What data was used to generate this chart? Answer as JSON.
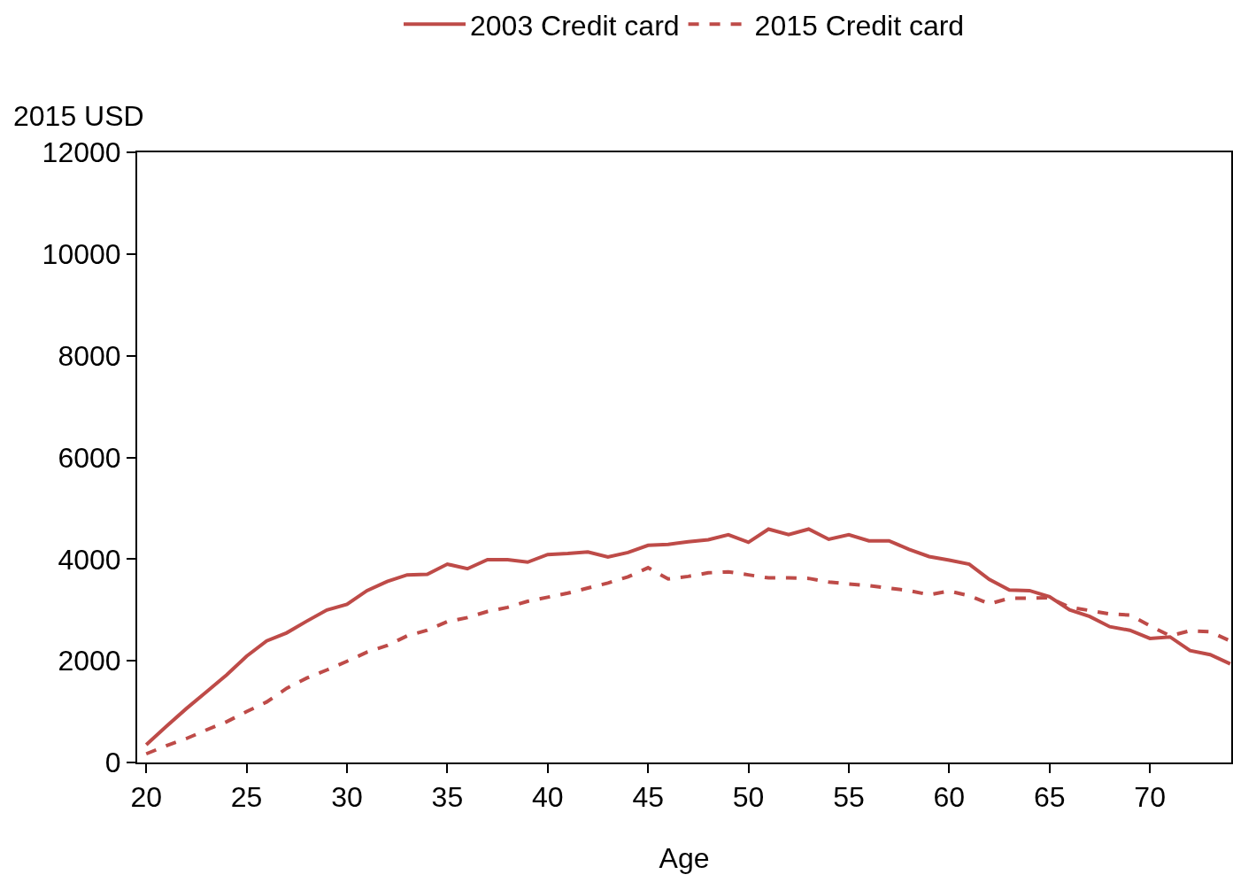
{
  "chart_data": {
    "type": "line",
    "xlabel": "Age",
    "ylabel": "2015 USD",
    "legend": "top",
    "x": [
      20,
      21,
      22,
      23,
      24,
      25,
      26,
      27,
      28,
      29,
      30,
      31,
      32,
      33,
      34,
      35,
      36,
      37,
      38,
      39,
      40,
      41,
      42,
      43,
      44,
      45,
      46,
      47,
      48,
      49,
      50,
      51,
      52,
      53,
      54,
      55,
      56,
      57,
      58,
      59,
      60,
      61,
      62,
      63,
      64,
      65,
      66,
      67,
      68,
      69,
      70,
      71,
      72,
      73,
      74
    ],
    "xlim": [
      19.55,
      74.05
    ],
    "xticks": [
      20,
      25,
      30,
      35,
      40,
      45,
      50,
      55,
      60,
      65,
      70
    ],
    "ylim": [
      0,
      12000
    ],
    "yticks": [
      0,
      2000,
      4000,
      6000,
      8000,
      10000,
      12000
    ],
    "series": [
      {
        "name": "2003 Credit card",
        "color": "#be4b48",
        "line_style": "solid",
        "values": [
          350,
          710,
          1060,
          1390,
          1720,
          2090,
          2390,
          2550,
          2780,
          3000,
          3110,
          3380,
          3560,
          3690,
          3700,
          3900,
          3810,
          3990,
          3990,
          3940,
          4090,
          4110,
          4140,
          4040,
          4130,
          4270,
          4290,
          4340,
          4380,
          4480,
          4330,
          4590,
          4480,
          4590,
          4390,
          4480,
          4360,
          4360,
          4190,
          4050,
          3980,
          3900,
          3600,
          3390,
          3380,
          3260,
          3000,
          2870,
          2670,
          2600,
          2440,
          2470,
          2200,
          2120,
          1940
        ]
      },
      {
        "name": "2015 Credit card",
        "color": "#be4b48",
        "line_style": "dashed",
        "values": [
          170,
          330,
          470,
          640,
          800,
          1000,
          1190,
          1460,
          1660,
          1820,
          1990,
          2170,
          2300,
          2490,
          2600,
          2770,
          2850,
          2970,
          3050,
          3170,
          3250,
          3330,
          3430,
          3530,
          3650,
          3830,
          3610,
          3660,
          3730,
          3750,
          3690,
          3630,
          3630,
          3620,
          3550,
          3510,
          3480,
          3430,
          3380,
          3300,
          3370,
          3280,
          3120,
          3230,
          3230,
          3240,
          3050,
          2990,
          2920,
          2900,
          2690,
          2490,
          2590,
          2570,
          2390
        ]
      }
    ]
  }
}
